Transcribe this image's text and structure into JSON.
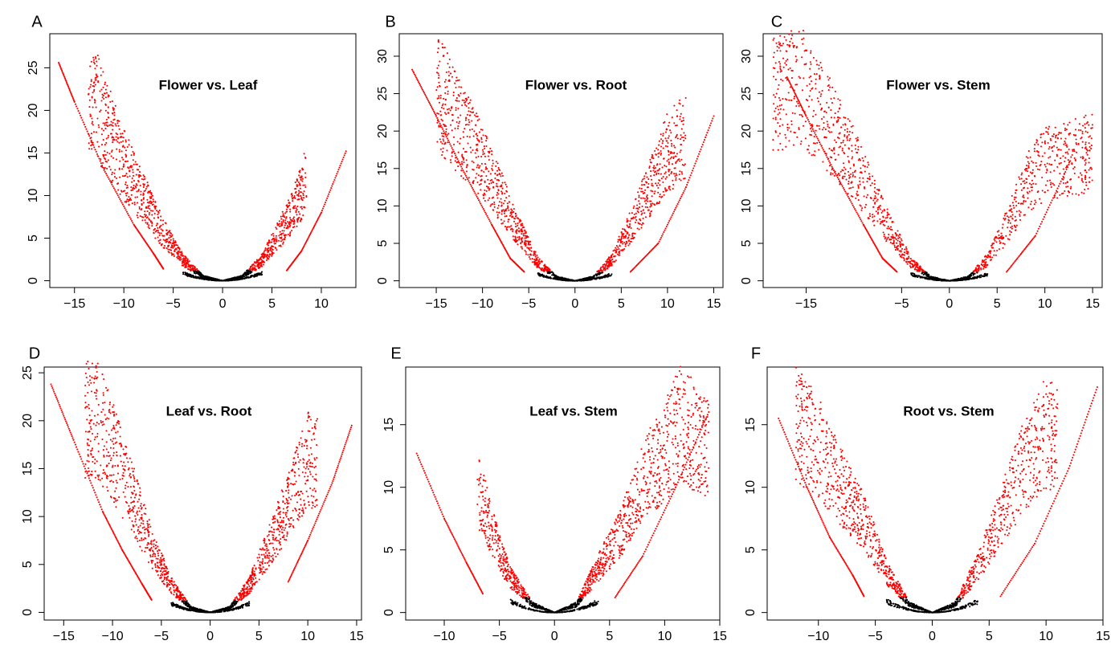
{
  "colors": {
    "significant": "#ff0000",
    "nonsignificant": "#000000",
    "frame": "#000000",
    "background": "#ffffff"
  },
  "chart_data": [
    {
      "panel": "A",
      "type": "scatter",
      "title": "Flower vs. Leaf",
      "xlabel": "",
      "ylabel": "",
      "grid": false,
      "xlim": [
        -17.5,
        13.5
      ],
      "ylim": [
        -0.8,
        29
      ],
      "xticks": [
        -15,
        -10,
        -5,
        0,
        5,
        10
      ],
      "yticks": [
        0,
        5,
        10,
        15,
        20,
        25
      ],
      "series": [
        {
          "values": [
            [
              -16.6,
              25.6
            ],
            [
              -15,
              21
            ],
            [
              -12,
              13
            ],
            [
              -9,
              6.6
            ],
            [
              -7,
              3.2
            ],
            [
              -6,
              1.4
            ]
          ]
        },
        {
          "values": [
            [
              -13.6,
              28
            ],
            [
              -12,
              23.5
            ],
            [
              -10,
              17
            ],
            [
              -8,
              12
            ],
            [
              -6,
              7
            ],
            [
              -4,
              3
            ],
            [
              -2,
              0.6
            ],
            [
              0,
              0
            ],
            [
              2,
              0.6
            ],
            [
              4,
              3
            ],
            [
              6,
              7.5
            ],
            [
              7,
              10
            ],
            [
              8,
              13
            ],
            [
              8.5,
              15.8
            ]
          ]
        },
        {
          "values": [
            [
              6.5,
              1.2
            ],
            [
              8,
              3.5
            ],
            [
              10,
              8
            ],
            [
              12.5,
              15.2
            ]
          ]
        }
      ]
    },
    {
      "panel": "B",
      "type": "scatter",
      "title": "Flower vs. Root",
      "xlabel": "",
      "ylabel": "",
      "grid": false,
      "xlim": [
        -19,
        16
      ],
      "ylim": [
        -0.9,
        33
      ],
      "xticks": [
        -15,
        -10,
        -5,
        0,
        5,
        10,
        15
      ],
      "yticks": [
        0,
        5,
        10,
        15,
        20,
        25,
        30
      ],
      "series": [
        {
          "values": [
            [
              -17.6,
              28.2
            ],
            [
              -15,
              22
            ],
            [
              -12,
              14.5
            ],
            [
              -9,
              7.5
            ],
            [
              -7,
              3
            ],
            [
              -5.5,
              1.2
            ]
          ]
        },
        {
          "values": [
            [
              -15,
              32
            ],
            [
              -13,
              27
            ],
            [
              -10,
              20
            ],
            [
              -8,
              14
            ],
            [
              -6,
              8
            ],
            [
              -4,
              3
            ],
            [
              -2,
              0.6
            ],
            [
              0,
              0
            ],
            [
              2,
              0.6
            ],
            [
              4,
              3.5
            ],
            [
              6,
              9
            ],
            [
              8,
              15
            ],
            [
              10,
              21.5
            ],
            [
              12,
              24
            ]
          ]
        },
        {
          "values": [
            [
              6,
              1.2
            ],
            [
              9,
              5
            ],
            [
              12,
              12.5
            ],
            [
              15,
              22
            ]
          ]
        }
      ]
    },
    {
      "panel": "C",
      "type": "scatter",
      "title": "Flower vs. Stem",
      "xlabel": "",
      "ylabel": "",
      "grid": false,
      "xlim": [
        -19.5,
        16
      ],
      "ylim": [
        -0.9,
        33
      ],
      "xticks": [
        -15,
        -5,
        0,
        5,
        10,
        15
      ],
      "yticks": [
        0,
        5,
        10,
        15,
        20,
        25,
        30
      ],
      "series": [
        {
          "values": [
            [
              -17,
              27.2
            ],
            [
              -15,
              22
            ],
            [
              -12,
              14.5
            ],
            [
              -9,
              7.5
            ],
            [
              -7,
              3
            ],
            [
              -5.5,
              1.2
            ]
          ]
        },
        {
          "values": [
            [
              -18.5,
              31
            ],
            [
              -15.5,
              32.5
            ],
            [
              -13,
              27
            ],
            [
              -10,
              19.5
            ],
            [
              -8,
              13.5
            ],
            [
              -6,
              8
            ],
            [
              -4,
              3
            ],
            [
              -2,
              0.6
            ],
            [
              0,
              0
            ],
            [
              2,
              0.6
            ],
            [
              4,
              3.5
            ],
            [
              6,
              9
            ],
            [
              8,
              16
            ],
            [
              10,
              19.5
            ],
            [
              15,
              21.3
            ]
          ]
        },
        {
          "values": [
            [
              6,
              1.2
            ],
            [
              9,
              6
            ],
            [
              12.5,
              15.5
            ]
          ]
        }
      ]
    },
    {
      "panel": "D",
      "type": "scatter",
      "title": "Leaf vs. Root",
      "xlabel": "",
      "ylabel": "",
      "grid": false,
      "xlim": [
        -17,
        15.5
      ],
      "ylim": [
        -0.8,
        25.6
      ],
      "xticks": [
        -15,
        -10,
        -5,
        0,
        5,
        10,
        15
      ],
      "yticks": [
        0,
        5,
        10,
        15,
        20,
        25
      ],
      "series": [
        {
          "values": [
            [
              -16.3,
              23.8
            ],
            [
              -14,
              18
            ],
            [
              -11,
              10.5
            ],
            [
              -9,
              6.5
            ],
            [
              -7,
              3
            ],
            [
              -6,
              1.3
            ]
          ]
        },
        {
          "values": [
            [
              -12.8,
              25
            ],
            [
              -11.5,
              25.2
            ],
            [
              -10,
              21
            ],
            [
              -8,
              15
            ],
            [
              -6,
              8.5
            ],
            [
              -4,
              3.5
            ],
            [
              -2,
              0.6
            ],
            [
              0,
              0
            ],
            [
              2,
              0.6
            ],
            [
              4,
              3.5
            ],
            [
              6,
              8.5
            ],
            [
              8,
              14
            ],
            [
              10,
              20
            ],
            [
              11,
              19.3
            ]
          ]
        },
        {
          "values": [
            [
              8,
              3.2
            ],
            [
              10,
              7.5
            ],
            [
              12.5,
              13.5
            ],
            [
              14.5,
              19.5
            ]
          ]
        }
      ]
    },
    {
      "panel": "E",
      "type": "scatter",
      "title": "Leaf vs. Stem",
      "xlabel": "",
      "ylabel": "",
      "grid": false,
      "xlim": [
        -13.5,
        15
      ],
      "ylim": [
        -0.6,
        19.6
      ],
      "xticks": [
        -10,
        -5,
        0,
        5,
        10,
        15
      ],
      "yticks": [
        0,
        5,
        10,
        15
      ],
      "series": [
        {
          "values": [
            [
              -12.5,
              12.7
            ],
            [
              -10,
              7.5
            ],
            [
              -8,
              4
            ],
            [
              -6.5,
              1.5
            ]
          ]
        },
        {
          "values": [
            [
              -7,
              12.5
            ],
            [
              -5,
              6
            ],
            [
              -4,
              3.5
            ],
            [
              -2,
              0.8
            ],
            [
              0,
              0
            ],
            [
              2,
              0.8
            ],
            [
              4,
              4.5
            ],
            [
              6,
              8
            ],
            [
              8,
              13
            ],
            [
              10,
              16
            ],
            [
              11.5,
              19
            ],
            [
              14,
              16
            ]
          ]
        },
        {
          "values": [
            [
              5.5,
              1.2
            ],
            [
              8,
              4.5
            ],
            [
              11,
              10
            ],
            [
              14,
              16
            ]
          ]
        }
      ]
    },
    {
      "panel": "F",
      "type": "scatter",
      "title": "Root vs. Stem",
      "xlabel": "",
      "ylabel": "",
      "grid": false,
      "xlim": [
        -14.5,
        15
      ],
      "ylim": [
        -0.6,
        19.6
      ],
      "xticks": [
        -10,
        -5,
        0,
        5,
        10,
        15
      ],
      "yticks": [
        0,
        5,
        10,
        15
      ],
      "series": [
        {
          "values": [
            [
              -13.5,
              15.5
            ],
            [
              -11,
              10
            ],
            [
              -9,
              6
            ],
            [
              -7,
              3
            ],
            [
              -6,
              1.3
            ]
          ]
        },
        {
          "values": [
            [
              -12,
              18.9
            ],
            [
              -10,
              16.5
            ],
            [
              -8,
              12.5
            ],
            [
              -6,
              9
            ],
            [
              -4,
              4
            ],
            [
              -2,
              0.8
            ],
            [
              0,
              0
            ],
            [
              2,
              0.8
            ],
            [
              4,
              4.5
            ],
            [
              6,
              9.5
            ],
            [
              8,
              14.5
            ],
            [
              10,
              18
            ],
            [
              11,
              17
            ]
          ]
        },
        {
          "values": [
            [
              6,
              1.3
            ],
            [
              9,
              5.5
            ],
            [
              12,
              11.5
            ],
            [
              14.5,
              18
            ]
          ]
        }
      ]
    }
  ]
}
